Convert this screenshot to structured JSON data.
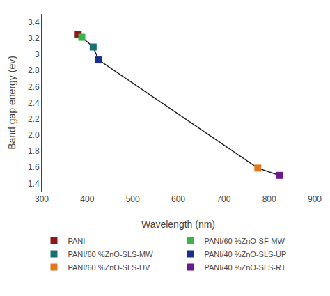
{
  "chart_data": {
    "type": "line",
    "xlabel": "Wavelength (nm)",
    "ylabel": "Band gap energy (ev)",
    "x": [
      380,
      388,
      413,
      425,
      775,
      822
    ],
    "series": [
      {
        "type": "line",
        "line_style": "solid",
        "color": "#1a1a1a",
        "values": [
          3.25,
          3.21,
          3.09,
          2.93,
          1.59,
          1.5
        ]
      },
      {
        "name": "PANI",
        "type": "scatter",
        "marker": "square",
        "color": "#8B1A1A",
        "values": [
          3.25,
          null,
          null,
          null,
          null,
          null
        ]
      },
      {
        "name": "PANI/60 %ZnO-SF-MW",
        "type": "scatter",
        "marker": "square",
        "color": "#3CB34A",
        "values": [
          null,
          3.21,
          null,
          null,
          null,
          null
        ]
      },
      {
        "name": "PANI/60 %ZnO-SLS-MW",
        "type": "scatter",
        "marker": "square",
        "color": "#1A7070",
        "values": [
          null,
          null,
          3.09,
          null,
          null,
          null
        ]
      },
      {
        "name": "PANI/40 %ZnO-SLS-UP",
        "type": "scatter",
        "marker": "square",
        "color": "#1A2E8B",
        "values": [
          null,
          null,
          null,
          2.93,
          null,
          null
        ]
      },
      {
        "name": "PANI/60 %ZnO-SLS-UV",
        "type": "scatter",
        "marker": "square",
        "color": "#E07820",
        "values": [
          null,
          null,
          null,
          null,
          1.59,
          null
        ]
      },
      {
        "name": "PANI/40 %ZnO-SLS-RT",
        "type": "scatter",
        "marker": "square",
        "color": "#6A1A8B",
        "values": [
          null,
          null,
          null,
          null,
          null,
          1.5
        ]
      }
    ],
    "xlim": [
      300,
      900
    ],
    "ylim": [
      1.3,
      3.5
    ],
    "xticks": [
      300,
      400,
      500,
      600,
      700,
      800,
      900
    ],
    "yticks": [
      1.4,
      1.6,
      1.8,
      {
        "value": 2.0,
        "label": "2.0"
      },
      2.2,
      2.4,
      2.6,
      2.8,
      3.0,
      3.2,
      3.4
    ],
    "grid": false,
    "legend": "bottom"
  }
}
